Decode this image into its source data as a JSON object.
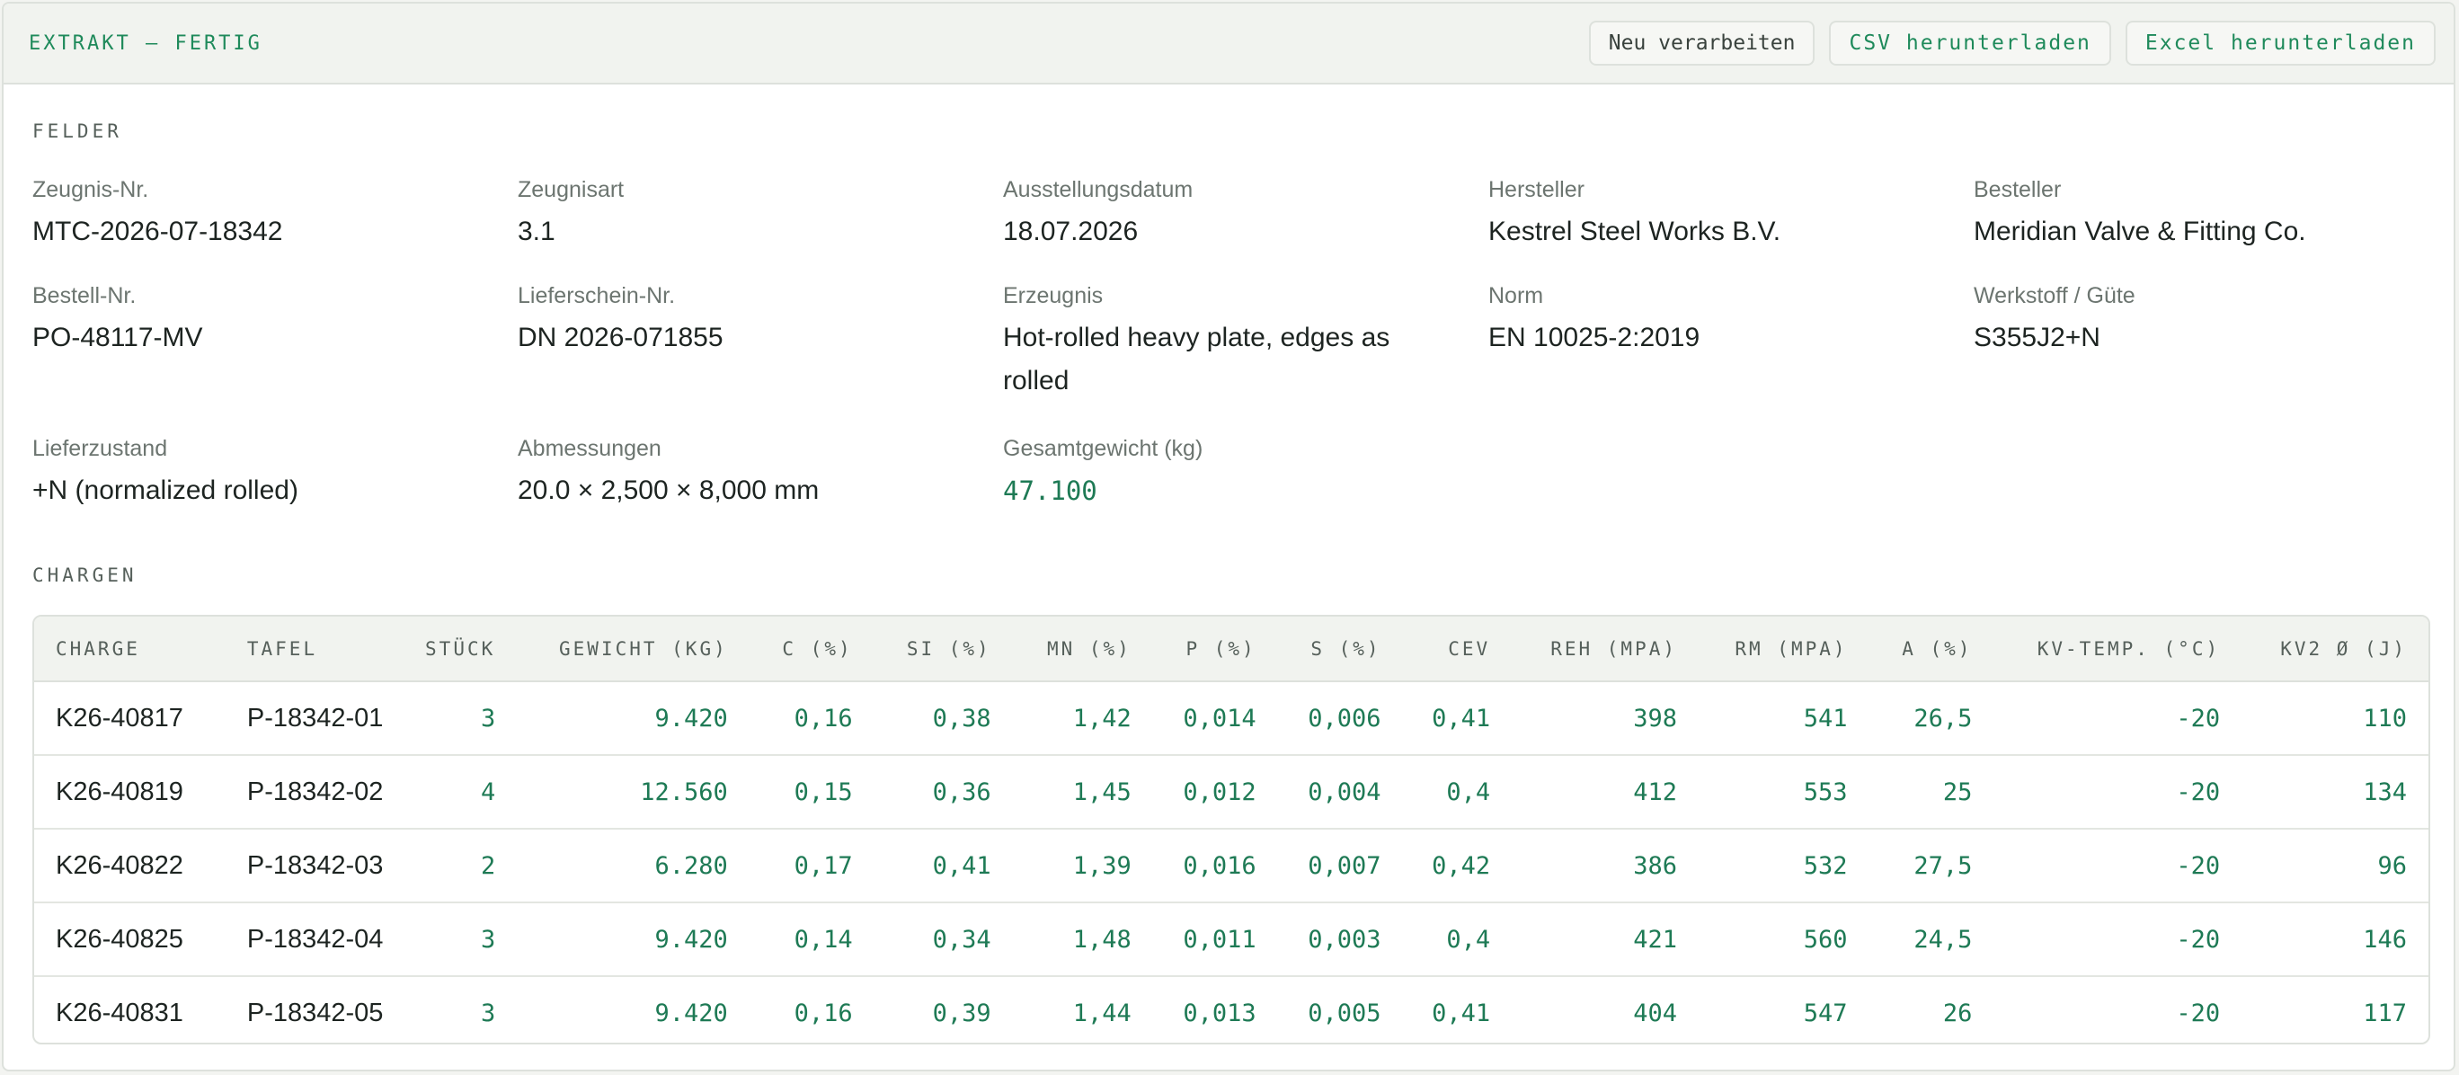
{
  "header": {
    "status": "EXTRAKT — FERTIG",
    "buttons": {
      "reprocess": "Neu verarbeiten",
      "csv": "CSV herunterladen",
      "excel": "Excel herunterladen"
    }
  },
  "sections": {
    "fields": "FELDER",
    "batches": "CHARGEN"
  },
  "fields": [
    {
      "label": "Zeugnis-Nr.",
      "value": "MTC-2026-07-18342"
    },
    {
      "label": "Zeugnisart",
      "value": "3.1"
    },
    {
      "label": "Ausstellungsdatum",
      "value": "18.07.2026"
    },
    {
      "label": "Hersteller",
      "value": "Kestrel Steel Works B.V."
    },
    {
      "label": "Besteller",
      "value": "Meridian Valve & Fitting Co."
    },
    {
      "label": "Bestell-Nr.",
      "value": "PO-48117-MV"
    },
    {
      "label": "Lieferschein-Nr.",
      "value": "DN 2026-071855"
    },
    {
      "label": "Erzeugnis",
      "value": "Hot-rolled heavy plate, edges as rolled"
    },
    {
      "label": "Norm",
      "value": "EN 10025-2:2019"
    },
    {
      "label": "Werkstoff / Güte",
      "value": "S355J2+N"
    },
    {
      "label": "Lieferzustand",
      "value": "+N (normalized rolled)"
    },
    {
      "label": "Abmessungen",
      "value": "20.0 × 2,500 × 8,000 mm"
    },
    {
      "label": "Gesamtgewicht (kg)",
      "value": "47.100"
    }
  ],
  "table": {
    "columns": [
      "CHARGE",
      "TAFEL",
      "STÜCK",
      "GEWICHT (KG)",
      "C (%)",
      "SI (%)",
      "MN (%)",
      "P (%)",
      "S (%)",
      "CEV",
      "REH (MPA)",
      "RM (MPA)",
      "A (%)",
      "KV-TEMP. (°C)",
      "KV2 Ø (J)"
    ],
    "rows": [
      [
        "K26-40817",
        "P-18342-01",
        "3",
        "9.420",
        "0,16",
        "0,38",
        "1,42",
        "0,014",
        "0,006",
        "0,41",
        "398",
        "541",
        "26,5",
        "-20",
        "110"
      ],
      [
        "K26-40819",
        "P-18342-02",
        "4",
        "12.560",
        "0,15",
        "0,36",
        "1,45",
        "0,012",
        "0,004",
        "0,4",
        "412",
        "553",
        "25",
        "-20",
        "134"
      ],
      [
        "K26-40822",
        "P-18342-03",
        "2",
        "6.280",
        "0,17",
        "0,41",
        "1,39",
        "0,016",
        "0,007",
        "0,42",
        "386",
        "532",
        "27,5",
        "-20",
        "96"
      ],
      [
        "K26-40825",
        "P-18342-04",
        "3",
        "9.420",
        "0,14",
        "0,34",
        "1,48",
        "0,011",
        "0,003",
        "0,4",
        "421",
        "560",
        "24,5",
        "-20",
        "146"
      ],
      [
        "K26-40831",
        "P-18342-05",
        "3",
        "9.420",
        "0,16",
        "0,39",
        "1,44",
        "0,013",
        "0,005",
        "0,41",
        "404",
        "547",
        "26",
        "-20",
        "117"
      ]
    ]
  }
}
